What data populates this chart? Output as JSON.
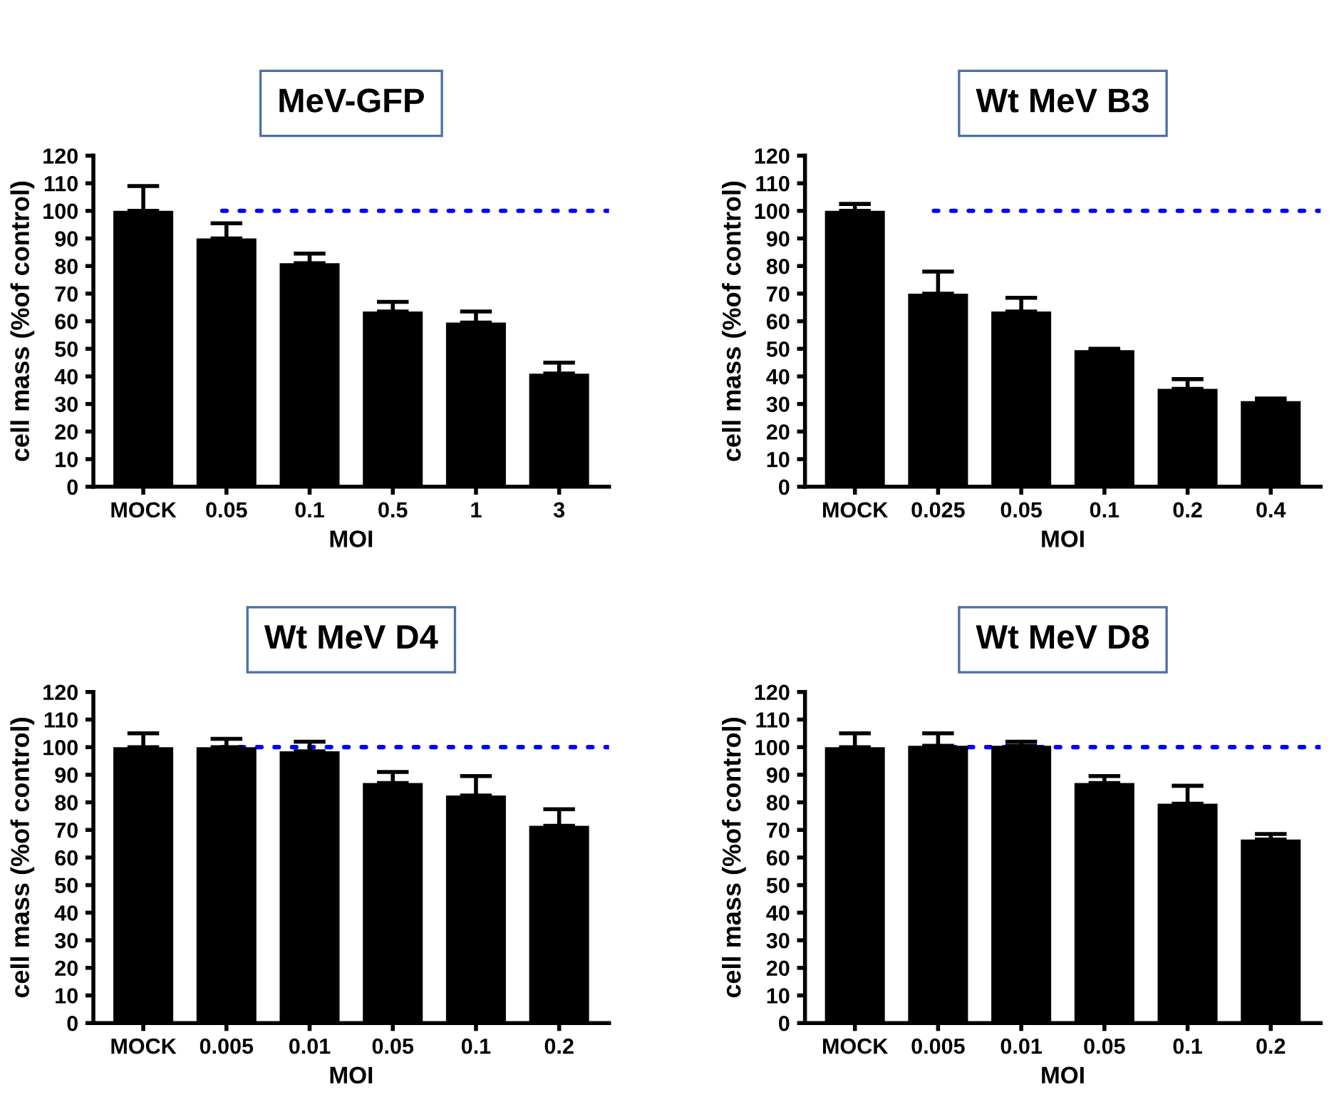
{
  "chart_data": [
    {
      "type": "bar",
      "title": "MeV-GFP",
      "xlabel": "MOI",
      "ylabel": "cell mass (%of control)",
      "categories": [
        "MOCK",
        "0.05",
        "0.1",
        "0.5",
        "1",
        "3"
      ],
      "values": [
        100,
        90,
        81,
        63.5,
        59.5,
        41
      ],
      "errors": [
        [
          100,
          109
        ],
        [
          90,
          95.5
        ],
        [
          81,
          84.5
        ],
        [
          63.5,
          67
        ],
        [
          59.5,
          63.5
        ],
        [
          41,
          45
        ]
      ],
      "color": "#000000",
      "ylim": [
        0,
        120
      ],
      "yticks": [
        0,
        10,
        20,
        30,
        40,
        50,
        60,
        70,
        80,
        90,
        100,
        110,
        120
      ],
      "ref_lines": [
        {
          "axis": "y",
          "value": 100,
          "color": "#0000ff",
          "line_style": "dotted"
        }
      ],
      "grid": false
    },
    {
      "type": "bar",
      "title": "Wt MeV B3",
      "xlabel": "MOI",
      "ylabel": "cell mass (%of control)",
      "categories": [
        "MOCK",
        "0.025",
        "0.05",
        "0.1",
        "0.2",
        "0.4"
      ],
      "values": [
        100,
        70,
        63.5,
        49.5,
        35.5,
        31
      ],
      "errors": [
        [
          100,
          102.5
        ],
        [
          70,
          78
        ],
        [
          63.5,
          68.5
        ],
        [
          49.5,
          50
        ],
        [
          35.5,
          39
        ],
        [
          31,
          32
        ]
      ],
      "color": "#000000",
      "ylim": [
        0,
        120
      ],
      "yticks": [
        0,
        10,
        20,
        30,
        40,
        50,
        60,
        70,
        80,
        90,
        100,
        110,
        120
      ],
      "ref_lines": [
        {
          "axis": "y",
          "value": 100,
          "color": "#0000ff",
          "line_style": "dotted"
        }
      ],
      "grid": false
    },
    {
      "type": "bar",
      "title": "Wt MeV D4",
      "xlabel": "MOI",
      "ylabel": "cell mass (%of control)",
      "categories": [
        "MOCK",
        "0.005",
        "0.01",
        "0.05",
        "0.1",
        "0.2"
      ],
      "values": [
        100,
        100,
        98.5,
        87,
        82.5,
        71.5
      ],
      "errors": [
        [
          100,
          105
        ],
        [
          100,
          103
        ],
        [
          98.5,
          102
        ],
        [
          87,
          91
        ],
        [
          82.5,
          89.5
        ],
        [
          71.5,
          77.5
        ]
      ],
      "color": "#000000",
      "ylim": [
        0,
        120
      ],
      "yticks": [
        0,
        10,
        20,
        30,
        40,
        50,
        60,
        70,
        80,
        90,
        100,
        110,
        120
      ],
      "ref_lines": [
        {
          "axis": "y",
          "value": 100,
          "color": "#0000ff",
          "line_style": "dotted"
        }
      ],
      "grid": false
    },
    {
      "type": "bar",
      "title": "Wt MeV D8",
      "xlabel": "MOI",
      "ylabel": "cell mass (%of control)",
      "categories": [
        "MOCK",
        "0.005",
        "0.01",
        "0.05",
        "0.1",
        "0.2"
      ],
      "values": [
        100,
        100.5,
        100.5,
        87,
        79.5,
        66.5
      ],
      "errors": [
        [
          100,
          105
        ],
        [
          100.5,
          105
        ],
        [
          100.5,
          102
        ],
        [
          87,
          89.5
        ],
        [
          79.5,
          86
        ],
        [
          66.5,
          68.5
        ]
      ],
      "color": "#000000",
      "ylim": [
        0,
        120
      ],
      "yticks": [
        0,
        10,
        20,
        30,
        40,
        50,
        60,
        70,
        80,
        90,
        100,
        110,
        120
      ],
      "ref_lines": [
        {
          "axis": "y",
          "value": 100,
          "color": "#0000ff",
          "line_style": "dotted"
        }
      ],
      "grid": false
    }
  ]
}
